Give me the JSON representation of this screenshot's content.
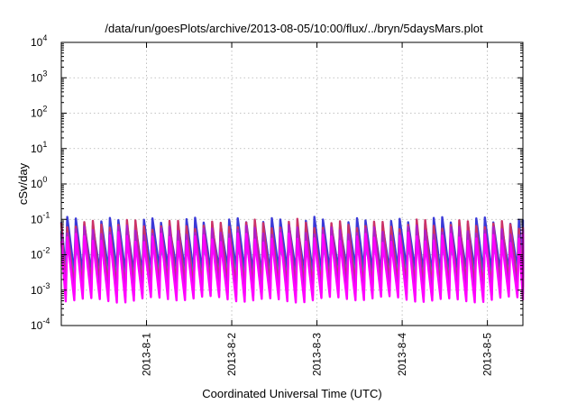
{
  "chart_data": {
    "type": "line",
    "title": "/data/run/goesPlots/archive/2013-08-05/10:00/flux/../bryn/5daysMars.plot",
    "xlabel": "Coordinated Universal Time (UTC)",
    "ylabel": "cSv/day",
    "yscale": "log",
    "ylim": [
      0.0001,
      10000
    ],
    "xlim": [
      "2013-07-31 00:00",
      "2013-08-05 10:00"
    ],
    "x_ticks": [
      "2013-8-1",
      "2013-8-2",
      "2013-8-3",
      "2013-8-4",
      "2013-8-5"
    ],
    "y_ticks": [
      {
        "base": "10",
        "exp": "-4"
      },
      {
        "base": "10",
        "exp": "-3"
      },
      {
        "base": "10",
        "exp": "-2"
      },
      {
        "base": "10",
        "exp": "-1"
      },
      {
        "base": "10",
        "exp": "0"
      },
      {
        "base": "10",
        "exp": "1"
      },
      {
        "base": "10",
        "exp": "2"
      },
      {
        "base": "10",
        "exp": "3"
      },
      {
        "base": "10",
        "exp": "4"
      }
    ],
    "grid": true,
    "legend": "none",
    "sawtooth_period_hours": 2.4,
    "series": [
      {
        "color": "#3a3ad8",
        "peak": 0.07,
        "trough": 0.0035
      },
      {
        "color": "#1f9ad0",
        "peak": 0.03,
        "trough": 0.002
      },
      {
        "color": "#18c0c0",
        "peak": 0.02,
        "trough": 0.0022
      },
      {
        "color": "#cc3366",
        "peak": 0.06,
        "trough": 0.0012
      },
      {
        "color": "#b020c8",
        "peak": 0.04,
        "trough": 0.0008
      },
      {
        "color": "#ff00ff",
        "peak": 0.025,
        "trough": 0.00055
      }
    ]
  }
}
